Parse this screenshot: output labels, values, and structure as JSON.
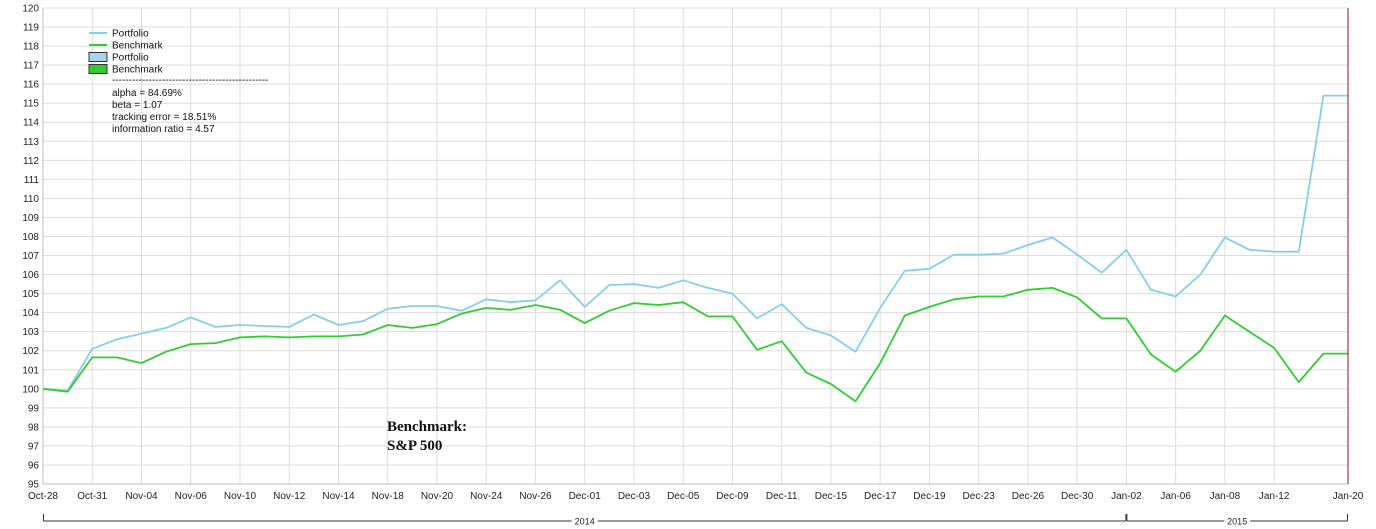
{
  "chart_data": {
    "type": "line",
    "categories": [
      "Oct-28",
      "Oct-29",
      "Oct-31",
      "Nov-03",
      "Nov-04",
      "Nov-05",
      "Nov-06",
      "Nov-07",
      "Nov-10",
      "Nov-11",
      "Nov-12",
      "Nov-13",
      "Nov-14",
      "Nov-17",
      "Nov-18",
      "Nov-19",
      "Nov-20",
      "Nov-21",
      "Nov-24",
      "Nov-25",
      "Nov-26",
      "Nov-28",
      "Dec-01",
      "Dec-02",
      "Dec-03",
      "Dec-04",
      "Dec-05",
      "Dec-08",
      "Dec-09",
      "Dec-10",
      "Dec-11",
      "Dec-12",
      "Dec-15",
      "Dec-16",
      "Dec-17",
      "Dec-18",
      "Dec-19",
      "Dec-22",
      "Dec-23",
      "Dec-24",
      "Dec-26",
      "Dec-29",
      "Dec-30",
      "Dec-31",
      "Jan-02",
      "Jan-05",
      "Jan-06",
      "Jan-07",
      "Jan-08",
      "Jan-09",
      "Jan-12",
      "Jan-13",
      "Jan-14",
      "Jan-20"
    ],
    "x_tick_labels": [
      "Oct-28",
      "Oct-31",
      "Nov-04",
      "Nov-06",
      "Nov-10",
      "Nov-12",
      "Nov-14",
      "Nov-18",
      "Nov-20",
      "Nov-24",
      "Nov-26",
      "Dec-01",
      "Dec-03",
      "Dec-05",
      "Dec-09",
      "Dec-11",
      "Dec-15",
      "Dec-17",
      "Dec-19",
      "Dec-23",
      "Dec-26",
      "Dec-30",
      "Jan-02",
      "Jan-06",
      "Jan-08",
      "Jan-12",
      "Jan-20"
    ],
    "series": [
      {
        "name": "Portfolio",
        "color": "#87ceeb",
        "values": [
          100,
          99.9,
          102.1,
          102.6,
          102.9,
          103.2,
          103.75,
          103.25,
          103.35,
          103.3,
          103.25,
          103.9,
          103.35,
          103.55,
          104.2,
          104.35,
          104.35,
          104.1,
          104.7,
          104.55,
          104.65,
          105.7,
          104.3,
          105.45,
          105.5,
          105.3,
          105.7,
          105.3,
          105.0,
          103.7,
          104.45,
          103.2,
          102.8,
          101.95,
          104.25,
          106.2,
          106.3,
          107.05,
          107.05,
          107.1,
          107.55,
          107.95,
          107.05,
          106.1,
          107.3,
          105.2,
          104.85,
          106.0,
          107.95,
          107.3,
          107.2,
          107.2,
          115.4,
          115.4
        ]
      },
      {
        "name": "Benchmark",
        "color": "#33cc33",
        "values": [
          100,
          99.85,
          101.65,
          101.65,
          101.35,
          101.95,
          102.35,
          102.4,
          102.7,
          102.75,
          102.7,
          102.75,
          102.75,
          102.85,
          103.35,
          103.2,
          103.4,
          103.95,
          104.25,
          104.15,
          104.4,
          104.15,
          103.45,
          104.1,
          104.5,
          104.4,
          104.55,
          103.8,
          103.8,
          102.05,
          102.5,
          100.85,
          100.25,
          99.35,
          101.35,
          103.85,
          104.3,
          104.7,
          104.85,
          104.85,
          105.2,
          105.3,
          104.8,
          103.7,
          103.7,
          101.8,
          100.9,
          102.0,
          103.85,
          103.0,
          102.15,
          100.35,
          101.85,
          101.85
        ]
      }
    ],
    "legend": [
      {
        "label": "Portfolio",
        "style": "line",
        "color": "#87ceeb"
      },
      {
        "label": "Benchmark",
        "style": "line",
        "color": "#33cc33"
      },
      {
        "label": "Portfolio",
        "style": "box",
        "color": "#a8d4ec"
      },
      {
        "label": "Benchmark",
        "style": "box",
        "color": "#33cc33"
      }
    ],
    "legend_position": "top-left",
    "legend_separator": "-----------------------------------------------",
    "stats": [
      "alpha = 84.69%",
      "beta = 1.07",
      "tracking error = 18.51%",
      "information ratio = 4.57"
    ],
    "annotation": [
      "Benchmark:",
      "S&P 500"
    ],
    "year_labels": [
      {
        "label": "2014",
        "from": "Oct-28",
        "to": "Jan-02"
      },
      {
        "label": "2015",
        "from": "Jan-02",
        "to": "Jan-20"
      }
    ],
    "marker_line_at": "Jan-20",
    "marker_color": "#8b1a1a",
    "title": "",
    "xlabel": "",
    "ylabel": "",
    "ylim": [
      95,
      120
    ],
    "y_step": 1,
    "grid": true
  }
}
